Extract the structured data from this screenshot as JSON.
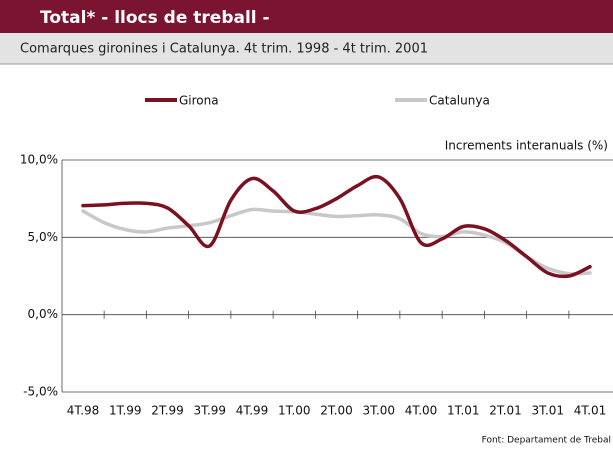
{
  "chart_data": {
    "type": "line",
    "title": "Total* - llocs de treball -",
    "subtitle": "Comarques gironines i Catalunya. 4t trim. 1998 - 4t trim. 2001",
    "axis_label": "Increments interanuals (%)",
    "source": "Font: Departament de Trebal",
    "categories": [
      "4T.98",
      null,
      "1T.99",
      null,
      "2T.99",
      null,
      "3T.99",
      null,
      "4T.99",
      null,
      "1T.00",
      null,
      "2T.00",
      null,
      "3T.00",
      null,
      "4T.00",
      null,
      "1T.01",
      null,
      "2T.01",
      null,
      "3T.01",
      null,
      "4T.01"
    ],
    "series": [
      {
        "name": "Girona",
        "color": "#7b1020",
        "values": [
          7.05,
          7.1,
          7.2,
          7.2,
          6.9,
          5.75,
          4.45,
          7.4,
          8.8,
          8.0,
          6.7,
          6.85,
          7.5,
          8.35,
          8.9,
          7.5,
          4.65,
          4.9,
          5.7,
          5.55,
          4.8,
          3.75,
          2.7,
          2.5,
          3.1
        ]
      },
      {
        "name": "Catalunya",
        "color": "#c8c8c8",
        "values": [
          6.7,
          5.95,
          5.5,
          5.35,
          5.6,
          5.75,
          5.95,
          6.4,
          6.8,
          6.7,
          6.65,
          6.5,
          6.35,
          6.4,
          6.45,
          6.2,
          5.25,
          5.05,
          5.35,
          5.15,
          4.65,
          3.75,
          3.0,
          2.65,
          2.7
        ]
      }
    ],
    "ylim": [
      -5,
      10
    ],
    "yticks": [
      {
        "value": -5,
        "label": "-5,0%"
      },
      {
        "value": 0,
        "label": "0,0%"
      },
      {
        "value": 5,
        "label": "5,0%"
      },
      {
        "value": 10,
        "label": "10,0%"
      }
    ],
    "grid": true
  }
}
